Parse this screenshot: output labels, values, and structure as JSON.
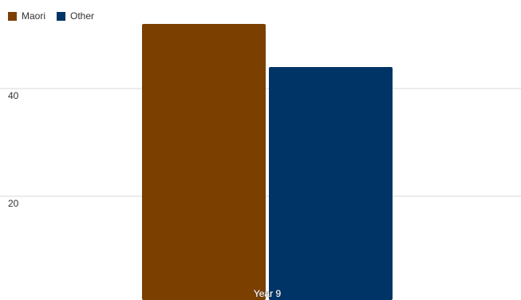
{
  "chart_data": {
    "type": "bar",
    "categories": [
      "Year 9"
    ],
    "series": [
      {
        "name": "Maori",
        "values": [
          52
        ],
        "color": "#7B3F00"
      },
      {
        "name": "Other",
        "values": [
          44
        ],
        "color": "#003366"
      }
    ],
    "ylim": [
      0,
      55
    ],
    "yticks": [
      20,
      40
    ],
    "grid": true,
    "legend": "top-left"
  }
}
